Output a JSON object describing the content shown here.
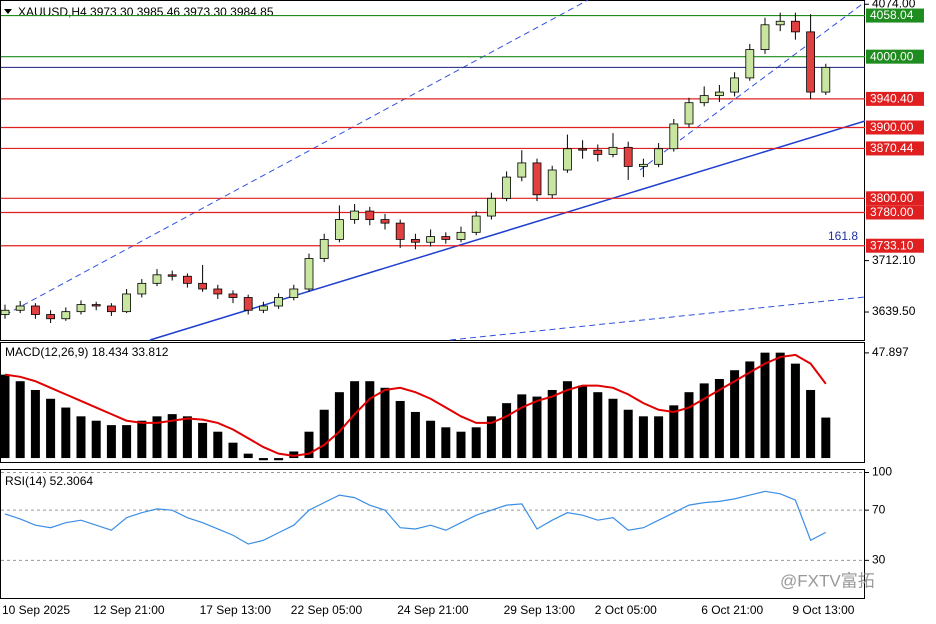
{
  "chart_data": [
    {
      "type": "candlestick",
      "title": "XAUUSD,H4  3973.30 3985.46 3973.30 3984.85",
      "categories": [
        "10 Sep 2025",
        null,
        null,
        null,
        null,
        null,
        "12 Sep 21:00",
        null,
        null,
        null,
        null,
        null,
        null,
        "17 Sep 13:00",
        null,
        null,
        null,
        null,
        null,
        "22 Sep 05:00",
        null,
        null,
        null,
        null,
        null,
        null,
        "24 Sep 21:00",
        null,
        null,
        null,
        null,
        null,
        null,
        "29 Sep 13:00",
        null,
        null,
        null,
        null,
        null,
        "2 Oct 05:00",
        null,
        null,
        null,
        null,
        null,
        null,
        "6 Oct 21:00",
        null,
        null,
        null,
        null,
        null,
        "9 Oct 13:00",
        null,
        null
      ],
      "open": [
        3636,
        3642,
        3648,
        3636,
        3630,
        3640,
        3650,
        3648,
        3640,
        3665,
        3680,
        3692,
        3690,
        3680,
        3672,
        3665,
        3660,
        3642,
        3648,
        3660,
        3672,
        3715,
        3742,
        3770,
        3782,
        3770,
        3765,
        3742,
        3738,
        3746,
        3742,
        3752,
        3775,
        3800,
        3830,
        3850,
        3805,
        3840,
        3870,
        3868,
        3862,
        3872,
        3845,
        3848,
        3870,
        3905,
        3935,
        3945,
        3950,
        3970,
        4010,
        4045,
        4050,
        4035,
        3950
      ],
      "high": [
        3650,
        3655,
        3652,
        3642,
        3646,
        3656,
        3654,
        3652,
        3672,
        3686,
        3700,
        3698,
        3694,
        3706,
        3678,
        3670,
        3664,
        3654,
        3666,
        3678,
        3722,
        3750,
        3790,
        3792,
        3788,
        3778,
        3770,
        3750,
        3756,
        3752,
        3760,
        3782,
        3808,
        3838,
        3868,
        3856,
        3846,
        3890,
        3882,
        3876,
        3892,
        3880,
        3856,
        3878,
        3912,
        3942,
        3958,
        3960,
        3978,
        4018,
        4055,
        4062,
        4062,
        4060,
        3990
      ],
      "low": [
        3630,
        3638,
        3630,
        3624,
        3627,
        3636,
        3642,
        3634,
        3638,
        3660,
        3676,
        3684,
        3674,
        3668,
        3658,
        3652,
        3636,
        3638,
        3644,
        3656,
        3668,
        3710,
        3738,
        3764,
        3762,
        3756,
        3730,
        3728,
        3732,
        3736,
        3738,
        3748,
        3770,
        3796,
        3824,
        3796,
        3800,
        3836,
        3856,
        3852,
        3858,
        3826,
        3830,
        3844,
        3866,
        3900,
        3930,
        3936,
        3944,
        3966,
        4004,
        4036,
        4024,
        3940,
        3946
      ],
      "close": [
        3642,
        3648,
        3636,
        3630,
        3640,
        3650,
        3648,
        3640,
        3665,
        3680,
        3692,
        3690,
        3680,
        3672,
        3665,
        3660,
        3642,
        3648,
        3660,
        3672,
        3715,
        3742,
        3770,
        3782,
        3770,
        3765,
        3742,
        3738,
        3746,
        3742,
        3752,
        3775,
        3800,
        3830,
        3850,
        3805,
        3840,
        3870,
        3868,
        3862,
        3872,
        3845,
        3848,
        3870,
        3905,
        3935,
        3945,
        3950,
        3970,
        4010,
        4045,
        4050,
        4035,
        3950,
        3984.85
      ],
      "up_color": "#c8e6a0",
      "down_color": "#e04040",
      "levels": [
        {
          "value": 4058.04,
          "label": "4058.04",
          "color": "#1e8c1e"
        },
        {
          "value": 4000,
          "label": "4000.00",
          "color": "#1e8c1e"
        },
        {
          "value": 3940.4,
          "label": "3940.40",
          "color": "#e02020"
        },
        {
          "value": 3900,
          "label": "3900.00",
          "color": "#e02020"
        },
        {
          "value": 3870.44,
          "label": "3870.44",
          "color": "#e02020"
        },
        {
          "value": 3800,
          "label": "3800.00",
          "color": "#e02020"
        },
        {
          "value": 3780,
          "label": "3780.00",
          "color": "#e02020"
        },
        {
          "value": 3733.1,
          "label": "3733.10",
          "color": "#e02020"
        }
      ],
      "annotation": "161.8",
      "ylim": [
        3600,
        4080
      ],
      "yticks": [
        {
          "value": 4074,
          "label": "4074.00"
        },
        {
          "value": 3712.1,
          "label": "3712.10"
        },
        {
          "value": 3639.5,
          "label": "3639.50"
        }
      ]
    },
    {
      "type": "macd",
      "title": "MACD(12,26,9) 18.434 33.812",
      "series": [
        {
          "type": "bar",
          "color": "#000000",
          "values": [
            38,
            35,
            31,
            27,
            23,
            19,
            17,
            15,
            15,
            17,
            19,
            20,
            19,
            16,
            12,
            7,
            2,
            -1,
            -1,
            3,
            12,
            22,
            30,
            35,
            35,
            32,
            26,
            21,
            17,
            14,
            12,
            14,
            19,
            25,
            29,
            28,
            31,
            35,
            33,
            30,
            27,
            22,
            19,
            19,
            24,
            30,
            34,
            36,
            40,
            44,
            48,
            48,
            43,
            31,
            18.434
          ]
        },
        {
          "type": "line",
          "color": "#e00000",
          "values": [
            38,
            37,
            35,
            32,
            29,
            26,
            23,
            20,
            17,
            16,
            16,
            17,
            18,
            17.5,
            16,
            13,
            9,
            5,
            2,
            1,
            2,
            6,
            12,
            20,
            27,
            31,
            32,
            30,
            27,
            23,
            19,
            16,
            16,
            19,
            23,
            26,
            28,
            31,
            33,
            33,
            32,
            29,
            25,
            22,
            21,
            23,
            27,
            31,
            35,
            39,
            43,
            46,
            47,
            43,
            33.812
          ]
        }
      ],
      "ylim": [
        -1.8,
        52.4
      ],
      "yticks": [
        47.897
      ]
    },
    {
      "type": "line",
      "title": "RSI(14) 52.3064",
      "color": "#3a8ee6",
      "values": [
        67,
        63,
        58,
        56,
        60,
        62,
        58,
        54,
        64,
        68,
        71,
        70,
        64,
        60,
        55,
        50,
        43,
        46,
        52,
        58,
        70,
        76,
        82,
        80,
        74,
        70,
        56,
        55,
        58,
        54,
        60,
        66,
        70,
        74,
        75,
        55,
        62,
        68,
        66,
        62,
        64,
        54,
        56,
        62,
        68,
        74,
        76,
        77,
        79,
        82,
        85,
        83,
        78,
        46,
        52.3064
      ],
      "ylim": [
        0,
        102
      ],
      "yticks": [
        100,
        70,
        30
      ],
      "grid": true
    }
  ],
  "watermark": "@FXTV富拓"
}
